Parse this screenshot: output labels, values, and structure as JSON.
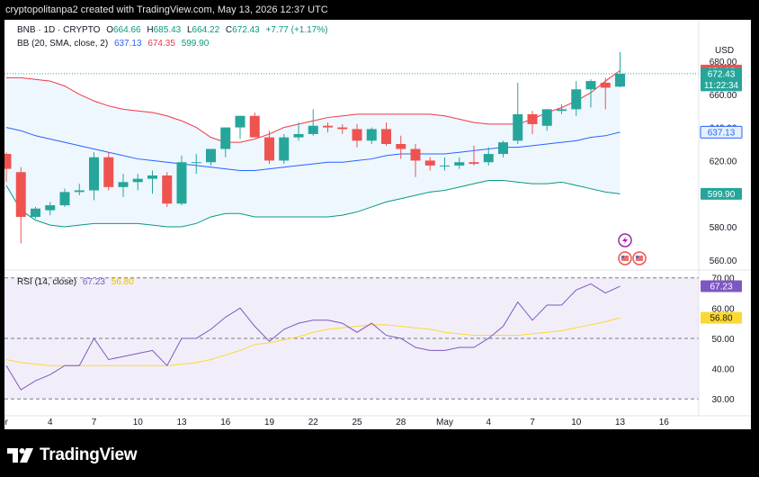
{
  "header": {
    "credit": "cryptopolitanpa2 created with TradingView.com, May 13, 2026 12:37 UTC"
  },
  "legend": {
    "symbol": "BNB · 1D · CRYPTO",
    "o_label": "O",
    "o": "664.66",
    "h_label": "H",
    "h": "685.43",
    "l_label": "L",
    "l": "664.22",
    "c_label": "C",
    "c": "672.43",
    "change": "+7.77 (+1.17%)",
    "bb_label": "BB (20, SMA, close, 2)",
    "bb_basis": "637.13",
    "bb_upper": "674.35",
    "bb_lower": "599.90",
    "rsi_label": "RSI (14, close)",
    "rsi_value": "67.23",
    "rsi_ma": "56.80"
  },
  "currency": "USD",
  "footer": {
    "brand": "TradingView"
  },
  "colors": {
    "up": "#26a69a",
    "down": "#ef5350",
    "bb_basis": "#2962ff",
    "bb_upper": "#f23645",
    "bb_lower": "#089981",
    "bb_fill": "#e3f2fd",
    "rsi_line": "#7e57c2",
    "rsi_ma": "#fdd835",
    "rsi_band": "#ede7f6"
  },
  "chart_data": [
    {
      "type": "candlestick",
      "title": "BNB · 1D · CRYPTO",
      "ylim": [
        555,
        705
      ],
      "price_ticks": [
        "680.00",
        "660.00",
        "640.00",
        "620.00",
        "600.00",
        "580.00",
        "560.00"
      ],
      "x_labels": [
        "Apr",
        "4",
        "7",
        "10",
        "13",
        "16",
        "19",
        "22",
        "25",
        "28",
        "May",
        "4",
        "7",
        "10",
        "13",
        "16"
      ],
      "ohlc": [
        [
          624,
          625,
          607,
          615
        ],
        [
          613,
          616,
          570,
          586
        ],
        [
          586,
          592,
          585,
          591
        ],
        [
          590,
          595,
          587,
          593
        ],
        [
          593,
          603,
          592,
          601
        ],
        [
          601,
          606,
          599,
          602
        ],
        [
          602,
          625,
          596,
          622
        ],
        [
          622,
          625,
          602,
          604
        ],
        [
          604,
          612,
          598,
          607
        ],
        [
          607,
          612,
          602,
          609
        ],
        [
          609,
          614,
          600,
          611
        ],
        [
          611,
          613,
          592,
          594
        ],
        [
          594,
          623,
          593,
          619
        ],
        [
          619,
          624,
          612,
          619
        ],
        [
          619,
          627,
          617,
          627
        ],
        [
          627,
          640,
          622,
          640
        ],
        [
          640,
          647,
          633,
          647
        ],
        [
          647,
          649,
          635,
          634
        ],
        [
          634,
          638,
          618,
          620
        ],
        [
          620,
          636,
          618,
          634
        ],
        [
          634,
          643,
          632,
          636
        ],
        [
          636,
          651,
          635,
          641
        ],
        [
          641,
          643,
          637,
          640
        ],
        [
          640,
          642,
          636,
          639
        ],
        [
          639,
          642,
          628,
          632
        ],
        [
          632,
          640,
          630,
          639
        ],
        [
          639,
          643,
          629,
          630
        ],
        [
          630,
          635,
          621,
          627
        ],
        [
          627,
          630,
          610,
          620
        ],
        [
          620,
          622,
          614,
          617
        ],
        [
          617,
          622,
          614,
          617
        ],
        [
          617,
          622,
          615,
          619
        ],
        [
          619,
          629,
          617,
          618
        ],
        [
          619,
          628,
          617,
          624
        ],
        [
          624,
          632,
          622,
          631
        ],
        [
          632,
          667,
          630,
          648
        ],
        [
          648,
          650,
          636,
          642
        ],
        [
          641,
          651,
          638,
          651
        ],
        [
          650,
          654,
          648,
          651
        ],
        [
          651,
          668,
          647,
          663
        ],
        [
          663,
          669,
          652,
          668
        ],
        [
          667,
          670,
          651,
          664
        ],
        [
          664.66,
          685.43,
          664.22,
          672.43
        ]
      ],
      "bollinger": {
        "name": "BB (20, SMA, close, 2)",
        "basis": [
          640,
          638,
          635,
          633,
          631,
          629,
          627,
          625,
          623,
          621,
          620,
          619,
          618,
          617,
          616,
          615,
          614,
          614,
          615,
          616,
          617,
          618,
          619,
          619,
          620,
          621,
          623,
          624,
          624,
          624,
          624,
          625,
          626,
          627,
          628,
          628,
          629,
          630,
          631,
          632,
          634,
          635,
          637.13
        ],
        "upper": [
          670,
          670,
          669,
          668,
          665,
          660,
          656,
          653,
          651,
          650,
          649,
          647,
          644,
          640,
          634,
          631,
          631,
          633,
          636,
          640,
          642,
          644,
          646,
          647,
          648,
          648,
          648,
          648,
          648,
          648,
          647,
          645,
          643,
          642,
          642,
          642,
          645,
          649,
          652,
          656,
          661,
          668,
          674.35
        ],
        "lower": [
          605,
          590,
          584,
          581,
          580,
          581,
          582,
          582,
          582,
          582,
          581,
          580,
          580,
          582,
          586,
          588,
          588,
          586,
          586,
          586,
          586,
          586,
          586,
          587,
          589,
          592,
          595,
          597,
          599,
          601,
          602,
          604,
          606,
          608,
          608,
          607,
          606,
          606,
          607,
          605,
          603,
          601,
          599.9
        ]
      }
    },
    {
      "type": "line",
      "title": "RSI (14, close)",
      "ylim": [
        25,
        72
      ],
      "ticks": [
        "70.00",
        "60.00",
        "50.00",
        "40.00",
        "30.00"
      ],
      "series": [
        {
          "name": "RSI",
          "values": [
            41,
            33,
            36,
            38,
            41,
            41,
            50,
            43,
            44,
            45,
            46,
            41,
            50,
            50,
            53,
            57,
            60,
            54,
            49,
            53,
            55,
            56,
            56,
            55,
            52,
            55,
            51,
            50,
            47,
            46,
            46,
            47,
            47,
            50,
            54,
            62,
            56,
            61,
            61,
            66,
            68,
            65,
            67.23
          ]
        },
        {
          "name": "RSI-based MA",
          "values": [
            43,
            42,
            41.5,
            41,
            41,
            41,
            41,
            41,
            41,
            41,
            41,
            41,
            41.5,
            42,
            43,
            44.5,
            46,
            48,
            48.5,
            49.5,
            50.5,
            52,
            53,
            53.5,
            54,
            54.5,
            54.5,
            54,
            53.5,
            53,
            52,
            51.5,
            51,
            51,
            51,
            51,
            51.5,
            52,
            52.5,
            53.5,
            54.5,
            55.5,
            56.8
          ]
        }
      ]
    }
  ]
}
